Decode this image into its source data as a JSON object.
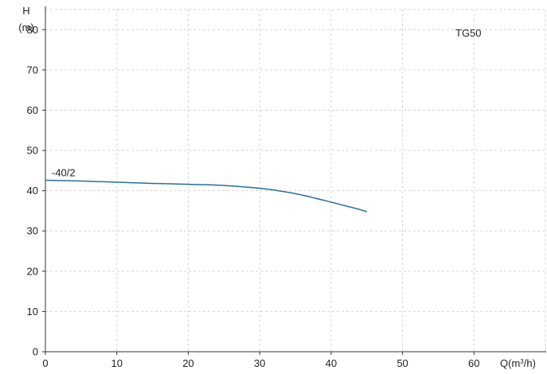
{
  "chart_data": {
    "type": "line",
    "title": "TG50",
    "ylabel_line1": "H",
    "ylabel_line2": "(m)",
    "xlabel_main": "Q(m",
    "xlabel_sup": "3",
    "xlabel_tail": "/h)",
    "xlim": [
      0,
      70
    ],
    "ylim": [
      0,
      85
    ],
    "x_ticks": [
      0,
      10,
      20,
      30,
      40,
      50,
      60
    ],
    "y_ticks": [
      0,
      10,
      20,
      30,
      40,
      50,
      60,
      70,
      80
    ],
    "grid": true,
    "series": [
      {
        "name": "-40/2",
        "color": "#2a6f97",
        "x": [
          0,
          5,
          10,
          15,
          20,
          25,
          30,
          33,
          36,
          39,
          41,
          43,
          45
        ],
        "y": [
          42.6,
          42.4,
          42.1,
          41.8,
          41.6,
          41.3,
          40.6,
          39.9,
          38.9,
          37.6,
          36.7,
          35.8,
          34.8
        ]
      }
    ]
  }
}
